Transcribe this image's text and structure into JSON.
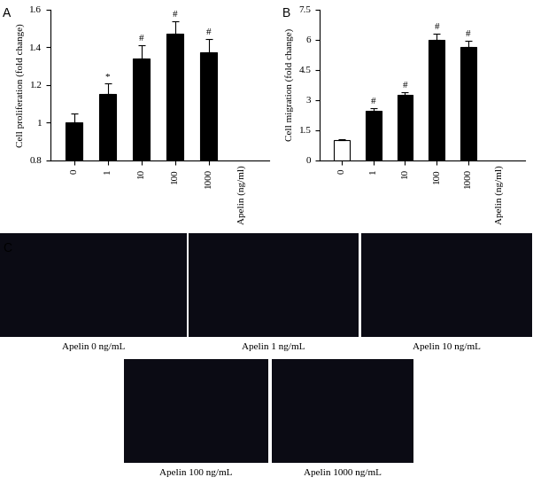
{
  "chart_data": [
    {
      "type": "bar",
      "categories": [
        "0",
        "1",
        "10",
        "100",
        "1000"
      ],
      "values": [
        1.0,
        1.15,
        1.34,
        1.47,
        1.375
      ],
      "errors": [
        0.05,
        0.06,
        0.07,
        0.07,
        0.07
      ],
      "annotations": [
        null,
        "*",
        "#",
        "#",
        "#"
      ],
      "color": "#000000",
      "x_label": "Apelin (ng/ml)",
      "y_label": "Cell proliferation (fold change)",
      "ylim": [
        0.8,
        1.6
      ],
      "yticks": [
        0.8,
        1,
        1.2,
        1.4,
        1.6
      ]
    },
    {
      "type": "bar",
      "categories": [
        "0",
        "1",
        "10",
        "100",
        "1000"
      ],
      "values": [
        1.0,
        2.45,
        3.25,
        6.0,
        5.65
      ],
      "errors": [
        0.05,
        0.15,
        0.15,
        0.3,
        0.3
      ],
      "annotations": [
        null,
        "#",
        "#",
        "#",
        "#"
      ],
      "colors": [
        "#ffffff",
        "#000000",
        "#000000",
        "#000000",
        "#000000"
      ],
      "x_label": "Apelin (ng/ml)",
      "y_label": "Cell migration (fold change)",
      "ylim": [
        0,
        7.5
      ],
      "yticks": [
        0,
        1.5,
        3,
        4.5,
        6,
        7.5
      ]
    }
  ],
  "panel_labels": [
    "A",
    "B",
    "C"
  ],
  "images": {
    "captions": [
      "Apelin 0 ng/mL",
      "Apelin 1 ng/mL",
      "Apelin 10 ng/mL",
      "Apelin 100 ng/mL",
      "Apelin 1000 ng/mL"
    ]
  }
}
